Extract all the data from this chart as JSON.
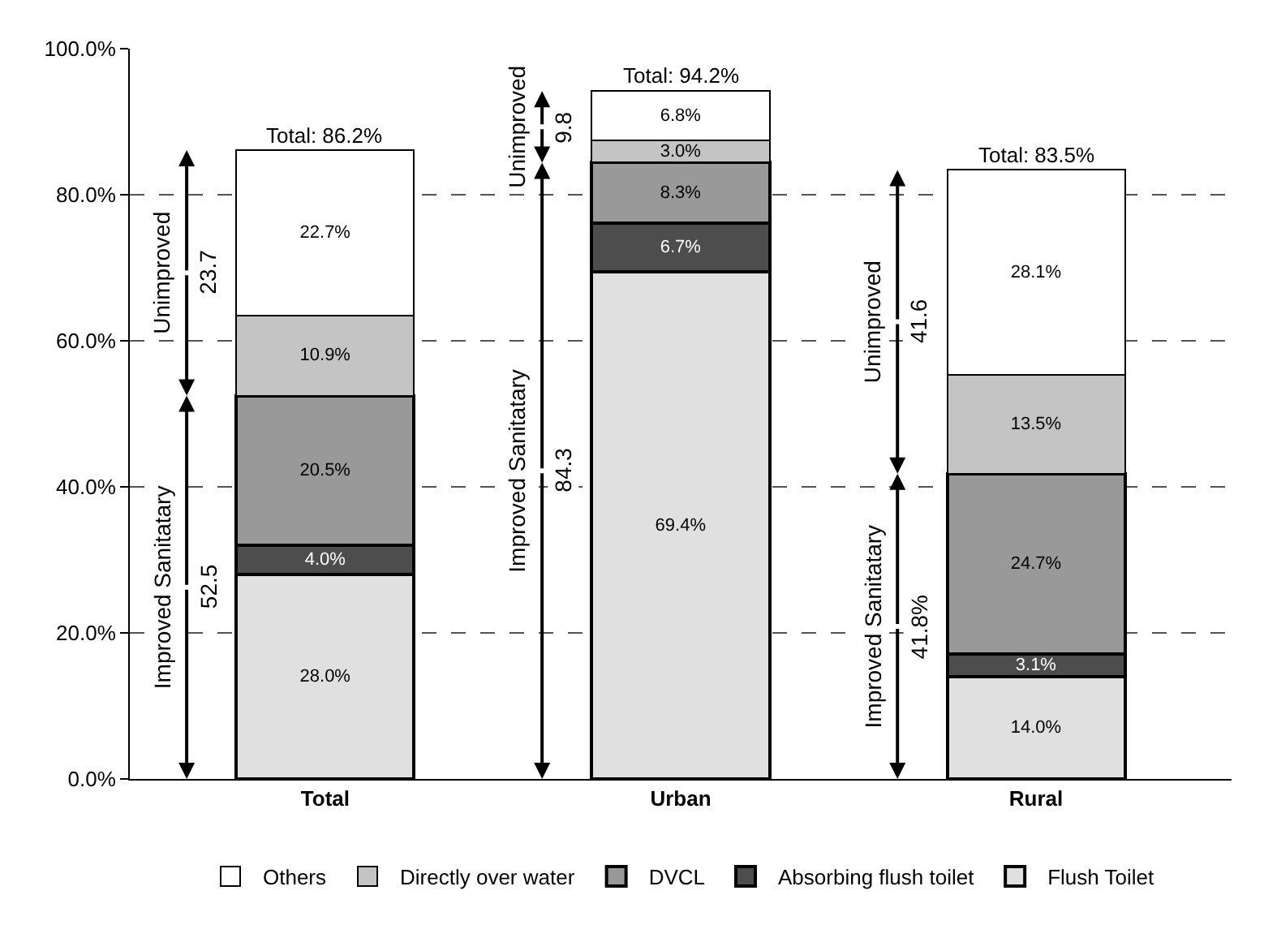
{
  "chart_data": {
    "type": "bar",
    "stacked": true,
    "categories": [
      "Total",
      "Urban",
      "Rural"
    ],
    "series": [
      {
        "name": "Flush Toilet",
        "color": "#e0e0e0",
        "values": [
          28.0,
          69.4,
          14.0
        ],
        "value_labels": [
          "28.0%",
          "69.4%",
          "14.0%"
        ]
      },
      {
        "name": "Absorbing flush toilet",
        "color": "#4d4d4d",
        "values": [
          4.0,
          6.7,
          3.1
        ],
        "value_labels": [
          "4.0%",
          "6.7%",
          "3.1%"
        ]
      },
      {
        "name": "DVCL",
        "color": "#999999",
        "values": [
          20.5,
          8.3,
          24.7
        ],
        "value_labels": [
          "20.5%",
          "8.3%",
          "24.7%"
        ]
      },
      {
        "name": "Directly over water",
        "color": "#c4c4c4",
        "values": [
          10.9,
          3.0,
          13.5
        ],
        "value_labels": [
          "10.9%",
          "3.0%",
          "13.5%"
        ]
      },
      {
        "name": "Others",
        "color": "#ffffff",
        "values": [
          22.7,
          6.8,
          28.1
        ],
        "value_labels": [
          "22.7%",
          "6.8%",
          "28.1%"
        ]
      }
    ],
    "totals": [
      "Total: 86.2%",
      "Total: 94.2%",
      "Total: 83.5%"
    ],
    "ylim": [
      0,
      100
    ],
    "yticks": [
      {
        "value": 0,
        "label": "0.0%"
      },
      {
        "value": 20,
        "label": "20.0%"
      },
      {
        "value": 40,
        "label": "40.0%"
      },
      {
        "value": 60,
        "label": "60.0%"
      },
      {
        "value": 80,
        "label": "80.0%"
      },
      {
        "value": 100,
        "label": "100.0%"
      }
    ],
    "grid": "y",
    "legend": "bottom",
    "annotations": [
      "Improved Sanitatary",
      "52.5",
      "Unimproved",
      "23.7",
      "Improved Sanitatary",
      "84.3",
      "Unimproved",
      "9.8",
      "Improved Sanitatary",
      "41.8%",
      "Unimproved",
      "41.6"
    ]
  }
}
